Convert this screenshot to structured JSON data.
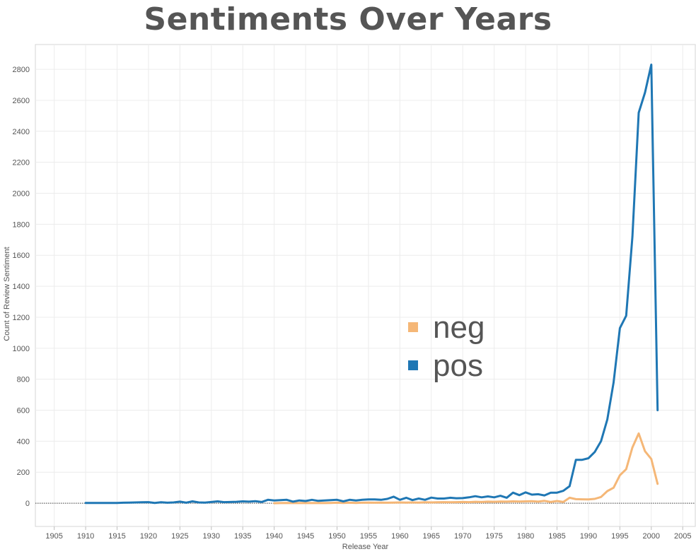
{
  "chart_data": {
    "type": "line",
    "title": "Sentiments Over Years",
    "xlabel": "Release Year",
    "ylabel": "Count of Review Sentiment",
    "xlim": [
      1902,
      2007
    ],
    "ylim": [
      -150,
      2960
    ],
    "x_ticks": [
      1905,
      1910,
      1915,
      1920,
      1925,
      1930,
      1935,
      1940,
      1945,
      1950,
      1955,
      1960,
      1965,
      1970,
      1975,
      1980,
      1985,
      1990,
      1995,
      2000,
      2005
    ],
    "y_ticks": [
      0,
      200,
      400,
      600,
      800,
      1000,
      1200,
      1400,
      1600,
      1800,
      2000,
      2200,
      2400,
      2600,
      2800
    ],
    "grid": true,
    "legend_position": "center",
    "series": [
      {
        "name": "neg",
        "color": "#F5B777",
        "x": [
          1940,
          1941,
          1942,
          1943,
          1944,
          1945,
          1946,
          1947,
          1948,
          1949,
          1950,
          1951,
          1952,
          1953,
          1954,
          1955,
          1956,
          1957,
          1958,
          1959,
          1960,
          1961,
          1962,
          1963,
          1964,
          1965,
          1966,
          1967,
          1968,
          1969,
          1970,
          1971,
          1972,
          1973,
          1974,
          1975,
          1976,
          1977,
          1978,
          1979,
          1980,
          1981,
          1982,
          1983,
          1984,
          1985,
          1986,
          1987,
          1988,
          1989,
          1990,
          1991,
          1992,
          1993,
          1994,
          1995,
          1996,
          1997,
          1998,
          1999,
          2000,
          2001
        ],
        "values": [
          0,
          1,
          2,
          1,
          1,
          2,
          1,
          2,
          1,
          2,
          3,
          2,
          3,
          2,
          3,
          4,
          3,
          4,
          3,
          4,
          5,
          4,
          5,
          4,
          6,
          5,
          6,
          7,
          6,
          7,
          8,
          7,
          9,
          8,
          10,
          9,
          11,
          10,
          12,
          11,
          12,
          13,
          10,
          15,
          8,
          14,
          8,
          35,
          26,
          25,
          24,
          28,
          40,
          78,
          100,
          180,
          220,
          360,
          450,
          335,
          285,
          125
        ]
      },
      {
        "name": "pos",
        "color": "#1F77B4",
        "x": [
          1910,
          1911,
          1912,
          1913,
          1914,
          1915,
          1916,
          1917,
          1918,
          1919,
          1920,
          1921,
          1922,
          1923,
          1924,
          1925,
          1926,
          1927,
          1928,
          1929,
          1930,
          1931,
          1932,
          1933,
          1934,
          1935,
          1936,
          1937,
          1938,
          1939,
          1940,
          1941,
          1942,
          1943,
          1944,
          1945,
          1946,
          1947,
          1948,
          1949,
          1950,
          1951,
          1952,
          1953,
          1954,
          1955,
          1956,
          1957,
          1958,
          1959,
          1960,
          1961,
          1962,
          1963,
          1964,
          1965,
          1966,
          1967,
          1968,
          1969,
          1970,
          1971,
          1972,
          1973,
          1974,
          1975,
          1976,
          1977,
          1978,
          1979,
          1980,
          1981,
          1982,
          1983,
          1984,
          1985,
          1986,
          1987,
          1988,
          1989,
          1990,
          1991,
          1992,
          1993,
          1994,
          1995,
          1996,
          1997,
          1998,
          1999,
          2000,
          2001
        ],
        "values": [
          2,
          2,
          2,
          2,
          2,
          2,
          3,
          4,
          5,
          6,
          7,
          2,
          6,
          3,
          5,
          10,
          3,
          12,
          5,
          4,
          8,
          12,
          7,
          8,
          9,
          12,
          10,
          13,
          8,
          22,
          18,
          20,
          22,
          10,
          18,
          14,
          22,
          15,
          18,
          20,
          22,
          12,
          22,
          18,
          22,
          24,
          24,
          22,
          28,
          42,
          22,
          35,
          20,
          30,
          22,
          36,
          30,
          30,
          35,
          32,
          33,
          38,
          45,
          38,
          44,
          38,
          48,
          35,
          68,
          52,
          70,
          55,
          58,
          50,
          68,
          68,
          80,
          110,
          280,
          280,
          290,
          330,
          400,
          540,
          780,
          1130,
          1210,
          1720,
          2520,
          2650,
          2830,
          600
        ]
      }
    ]
  }
}
